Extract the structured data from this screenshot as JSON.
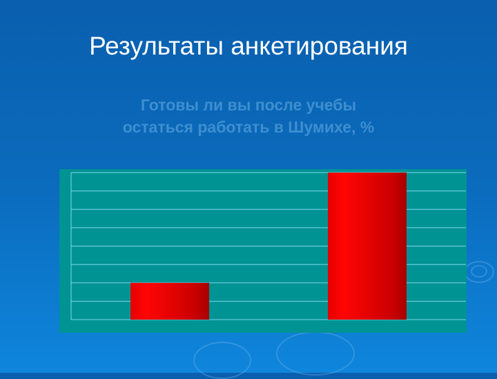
{
  "slide": {
    "title": "Результаты анкетирования",
    "chart_title_line1": "Готовы ли вы после учебы",
    "chart_title_line2": "остаться работать в Шумихе, %"
  },
  "chart_data": {
    "type": "bar",
    "title": "Готовы ли вы после учебы остаться работать в Шумихе, %",
    "categories": [
      "",
      ""
    ],
    "values": [
      2,
      8
    ],
    "ylim": [
      0,
      8
    ],
    "grid": true,
    "legend": "none",
    "colors": {
      "bar": "#ee0000",
      "plot_bg": "#009393",
      "grid": "#7fd8f0"
    }
  }
}
